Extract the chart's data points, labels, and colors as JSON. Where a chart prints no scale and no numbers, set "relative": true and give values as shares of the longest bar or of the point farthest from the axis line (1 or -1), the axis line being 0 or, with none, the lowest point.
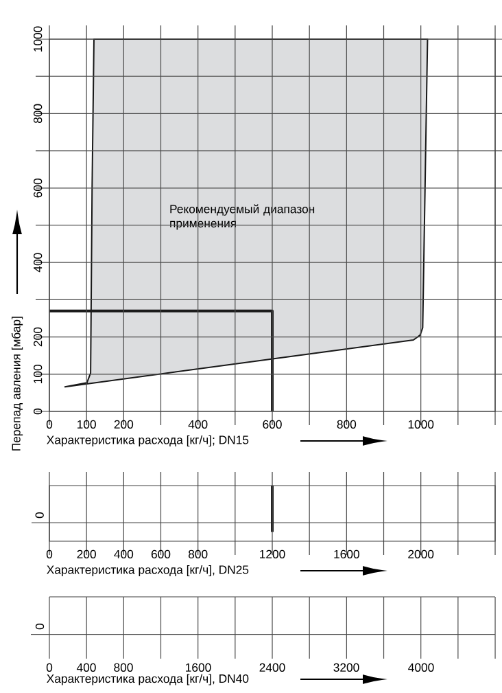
{
  "chart_data": [
    {
      "type": "line",
      "xlabel": "Характеристика расхода [кг/ч]; DN15",
      "ylabel": "Перепад авления [мбар]",
      "xlim": [
        0,
        1200
      ],
      "ylim": [
        0,
        1000
      ],
      "xticks": [
        0,
        100,
        200,
        {
          "value": 300,
          "label": null
        },
        400,
        {
          "value": 500,
          "label": null
        },
        600,
        {
          "value": 700,
          "label": null
        },
        800,
        {
          "value": 900,
          "label": null
        },
        1000,
        {
          "value": 1100,
          "label": null
        },
        {
          "value": 1200,
          "label": null
        }
      ],
      "yticks": [
        0,
        100,
        200,
        {
          "value": 300,
          "label": null
        },
        400,
        {
          "value": 500,
          "label": null
        },
        600,
        {
          "value": 700,
          "label": null
        },
        800,
        {
          "value": 900,
          "label": null
        },
        1000
      ],
      "grid": true,
      "series": [
        {
          "type": "area",
          "name": "Рекомендуемый диапазон применения",
          "color": "#dcdddf",
          "x": [
            42,
            980,
            998,
            1005,
            1018,
            120,
            115,
            111,
            101
          ],
          "values": [
            66,
            192,
            205,
            225,
            1000,
            1000,
            600,
            103,
            77
          ]
        },
        {
          "color": "#1a1a1a",
          "x": [
            0,
            600,
            600
          ],
          "values": [
            270,
            270,
            0
          ]
        }
      ]
    },
    {
      "type": "line",
      "relative": true,
      "xlabel": "Характеристика расхода [кг/ч], DN25",
      "xlim": [
        0,
        2400
      ],
      "xticks": [
        0,
        200,
        400,
        600,
        800,
        {
          "value": 1000,
          "label": null
        },
        1200,
        {
          "value": 1400,
          "label": null
        },
        1600,
        {
          "value": 1800,
          "label": null
        },
        2000,
        {
          "value": 2200,
          "label": null
        },
        {
          "value": 2400,
          "label": null
        }
      ],
      "grid": "x",
      "annotations": [
        "0"
      ],
      "series": [
        {
          "color": "#1a1a1a",
          "x": [
            1200,
            1200
          ],
          "values": [
            1,
            -0.25
          ]
        }
      ]
    },
    {
      "type": "other",
      "xlabel": "Характеристика расхода [кг/ч], DN40",
      "annotations": [
        "0",
        "0",
        "400",
        "800",
        "1600",
        "2400",
        "3200",
        "4000"
      ]
    }
  ]
}
